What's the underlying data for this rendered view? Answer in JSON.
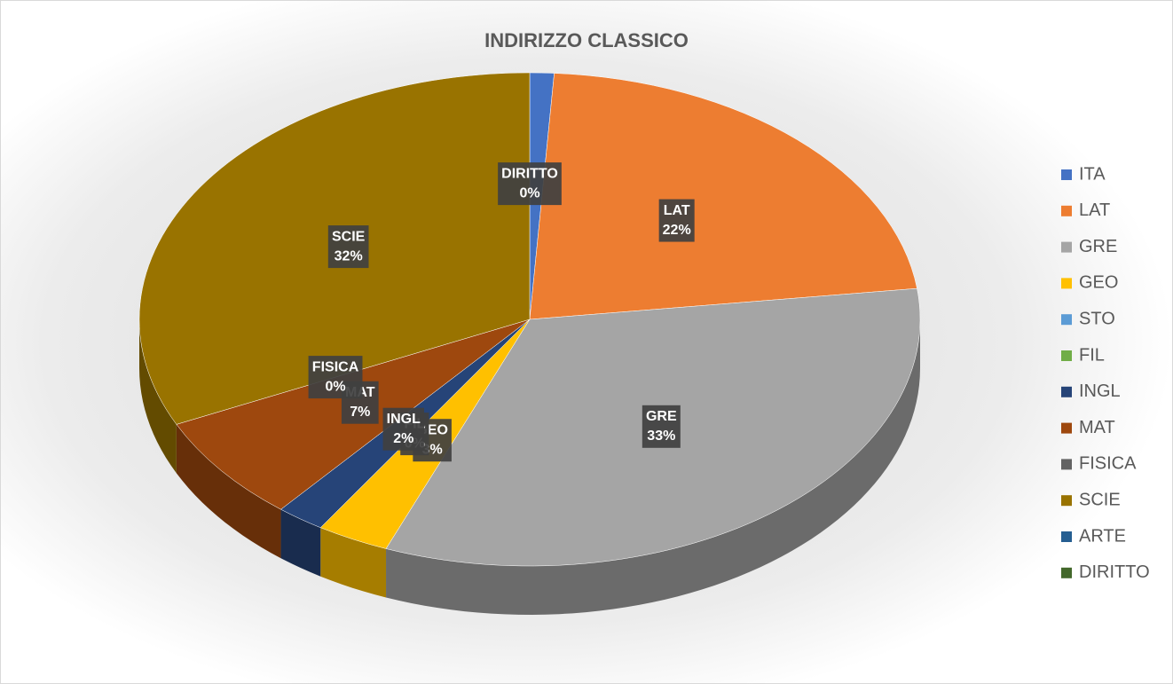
{
  "chart_data": {
    "type": "pie3d",
    "title": "INDIRIZZO CLASSICO",
    "categories": [
      "ITA",
      "LAT",
      "GRE",
      "GEO",
      "STO",
      "FIL",
      "INGL",
      "MAT",
      "FISICA",
      "SCIE",
      "ARTE",
      "DIRITTO"
    ],
    "values": [
      1,
      22,
      33,
      3,
      0,
      0,
      2,
      7,
      0,
      32,
      0,
      0
    ],
    "value_labels": [
      null,
      "22%",
      "33%",
      "3%",
      null,
      "0%",
      "2%",
      "7%",
      "0%",
      "32%",
      null,
      "0%"
    ],
    "colors": [
      "#4472c4",
      "#ed7d31",
      "#a5a5a5",
      "#ffc000",
      "#5b9bd5",
      "#70ad47",
      "#264478",
      "#9e480e",
      "#636363",
      "#997300",
      "#255e91",
      "#43682b"
    ],
    "legend": "right"
  }
}
